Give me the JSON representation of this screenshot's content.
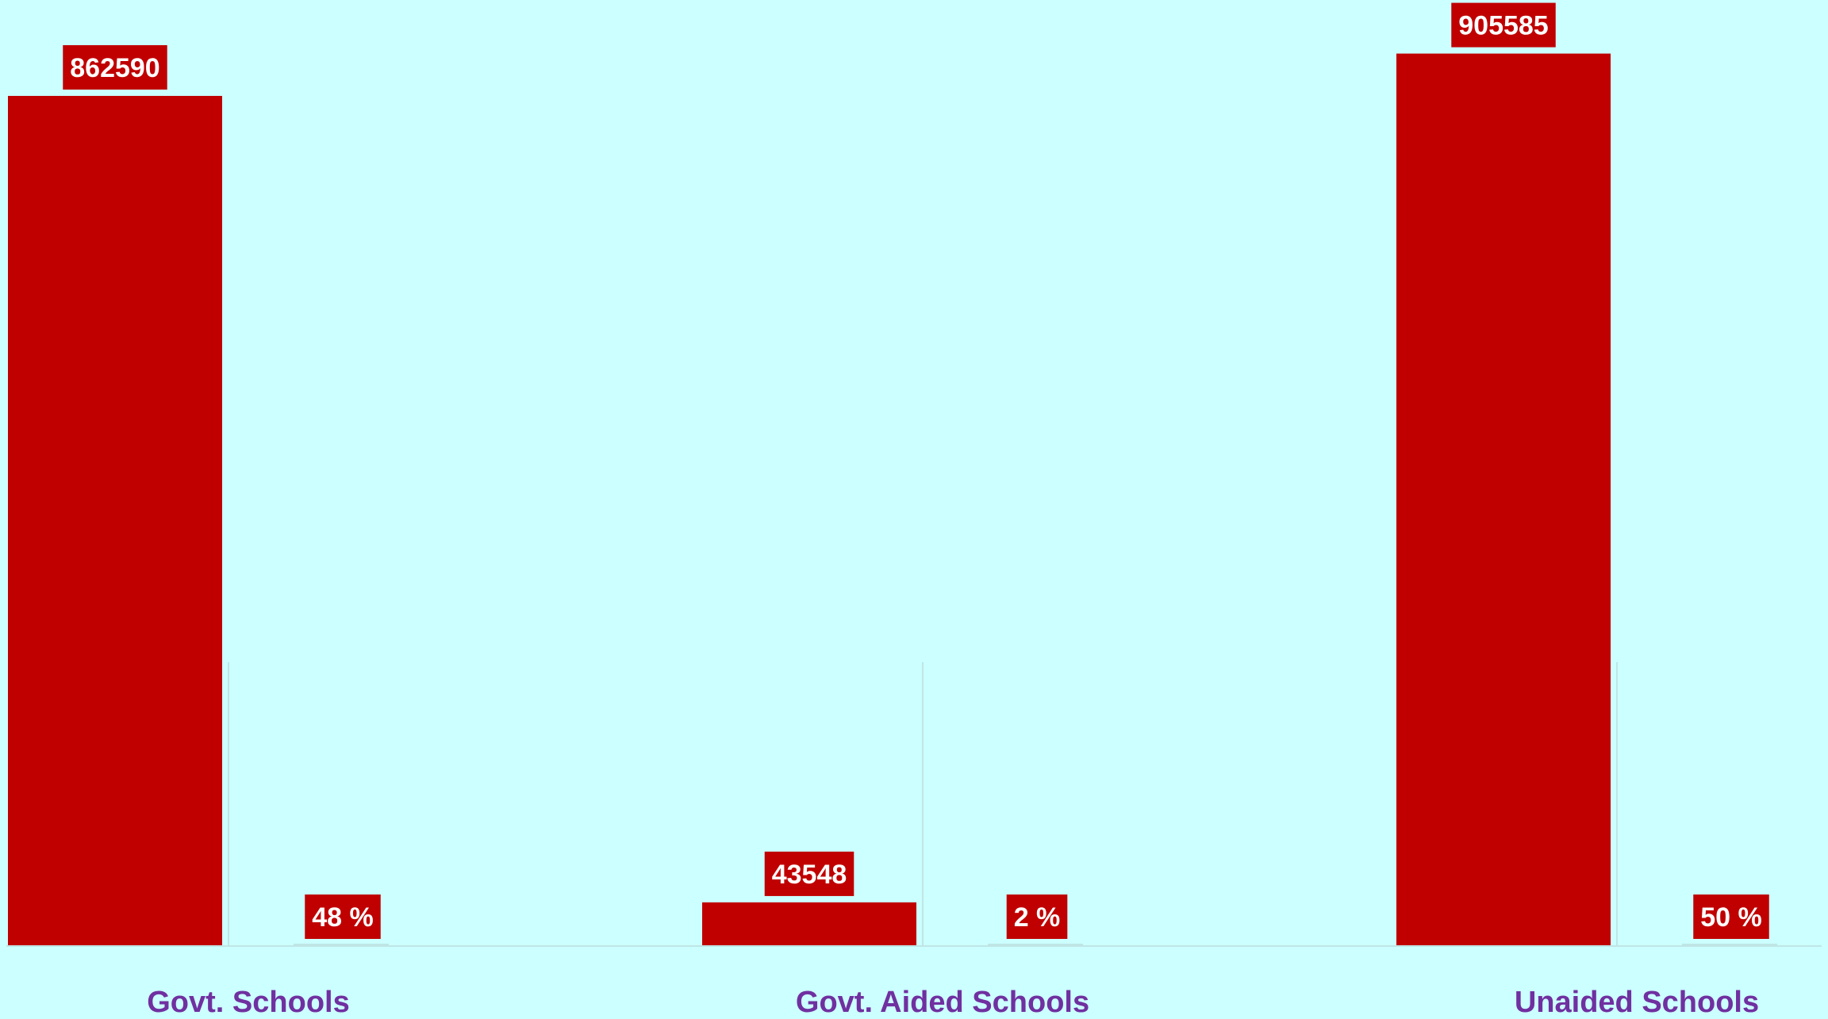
{
  "chart_data": {
    "type": "bar",
    "categories": [
      "Govt. Schools",
      "Govt. Aided Schools",
      "Unaided Schools"
    ],
    "series": [
      {
        "values": [
          862590,
          43548,
          905585
        ]
      },
      {
        "values": [
          48,
          2,
          50
        ]
      }
    ],
    "value_labels": [
      "862590",
      "43548",
      "905585"
    ],
    "percent_labels": [
      "48 %",
      "2 %",
      "50 %"
    ],
    "ylim": [
      0,
      960000
    ],
    "grid": false,
    "legend": "none",
    "colors": {
      "background": "#ccffff",
      "bar": "#c00000",
      "label_box": "#c00000",
      "label_text": "#ffffff",
      "category_text": "#7030a0",
      "baseline": "#bfe5e5"
    }
  }
}
